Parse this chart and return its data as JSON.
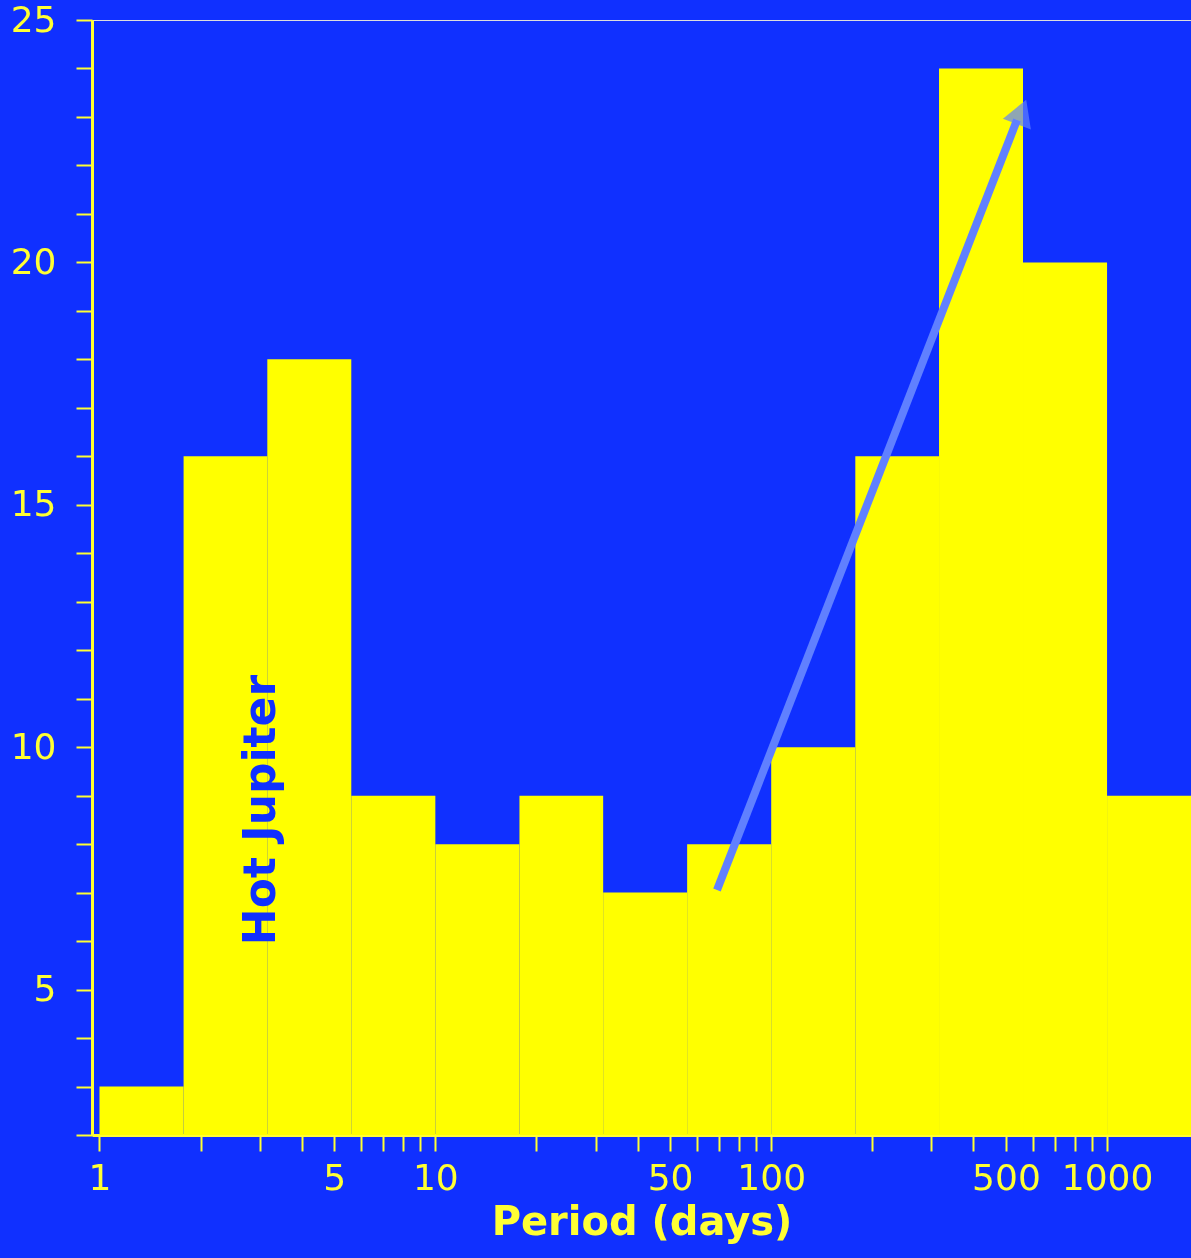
{
  "chart_data": {
    "type": "histogram",
    "xlabel": "Period (days)",
    "log": "x",
    "bins": [
      1,
      1.78,
      3.16,
      5.62,
      10,
      17.8,
      31.6,
      56.2,
      100,
      178,
      316,
      562,
      1000,
      1778
    ],
    "values": [
      3,
      16,
      18,
      9,
      8,
      9,
      7,
      8,
      10,
      16,
      24,
      20,
      9
    ],
    "color": "#ffff00",
    "xlim": [
      0.95,
      1778
    ],
    "xticks": [
      1,
      {
        "value": 2,
        "label": null
      },
      {
        "value": 3,
        "label": null
      },
      {
        "value": 4,
        "label": null
      },
      5,
      {
        "value": 6,
        "label": null
      },
      {
        "value": 7,
        "label": null
      },
      {
        "value": 8,
        "label": null
      },
      {
        "value": 9,
        "label": null
      },
      10,
      {
        "value": 20,
        "label": null
      },
      {
        "value": 30,
        "label": null
      },
      {
        "value": 40,
        "label": null
      },
      50,
      {
        "value": 60,
        "label": null
      },
      {
        "value": 70,
        "label": null
      },
      {
        "value": 80,
        "label": null
      },
      {
        "value": 90,
        "label": null
      },
      100,
      {
        "value": 200,
        "label": null
      },
      {
        "value": 300,
        "label": null
      },
      {
        "value": 400,
        "label": null
      },
      500,
      {
        "value": 600,
        "label": null
      },
      {
        "value": 700,
        "label": null
      },
      {
        "value": 800,
        "label": null
      },
      {
        "value": 900,
        "label": null
      },
      1000
    ],
    "ylim": [
      2,
      25
    ],
    "yticks": [
      {
        "value": 2,
        "label": null
      },
      {
        "value": 3,
        "label": null
      },
      {
        "value": 4,
        "label": null
      },
      5,
      {
        "value": 6,
        "label": null
      },
      {
        "value": 7,
        "label": null
      },
      {
        "value": 8,
        "label": null
      },
      {
        "value": 9,
        "label": null
      },
      10,
      {
        "value": 11,
        "label": null
      },
      {
        "value": 12,
        "label": null
      },
      {
        "value": 13,
        "label": null
      },
      {
        "value": 14,
        "label": null
      },
      15,
      {
        "value": 16,
        "label": null
      },
      {
        "value": 17,
        "label": null
      },
      {
        "value": 18,
        "label": null
      },
      {
        "value": 19,
        "label": null
      },
      20,
      {
        "value": 21,
        "label": null
      },
      {
        "value": 22,
        "label": null
      },
      {
        "value": 23,
        "label": null
      },
      {
        "value": 24,
        "label": null
      },
      25
    ],
    "grid": false,
    "annotations": [
      "Hot Jupiter"
    ]
  }
}
